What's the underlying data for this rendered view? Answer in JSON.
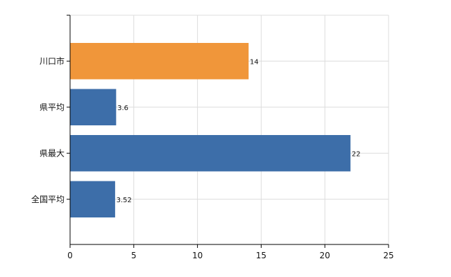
{
  "chart_data": {
    "type": "bar",
    "orientation": "horizontal",
    "categories": [
      "川口市",
      "県平均",
      "県最大",
      "全国平均"
    ],
    "values": [
      14,
      3.6,
      22,
      3.52
    ],
    "value_labels": [
      "14",
      "3.6",
      "22",
      "3.52"
    ],
    "bar_colors": [
      "#f0963a",
      "#3d6ea9",
      "#3d6ea9",
      "#3d6ea9"
    ],
    "xlim": [
      0,
      25
    ],
    "xticks": [
      0,
      5,
      10,
      15,
      20,
      25
    ],
    "xtick_labels": [
      "0",
      "5",
      "10",
      "15",
      "20",
      "25"
    ],
    "title": "",
    "xlabel": "",
    "ylabel": "",
    "grid": true,
    "legend": "none"
  }
}
